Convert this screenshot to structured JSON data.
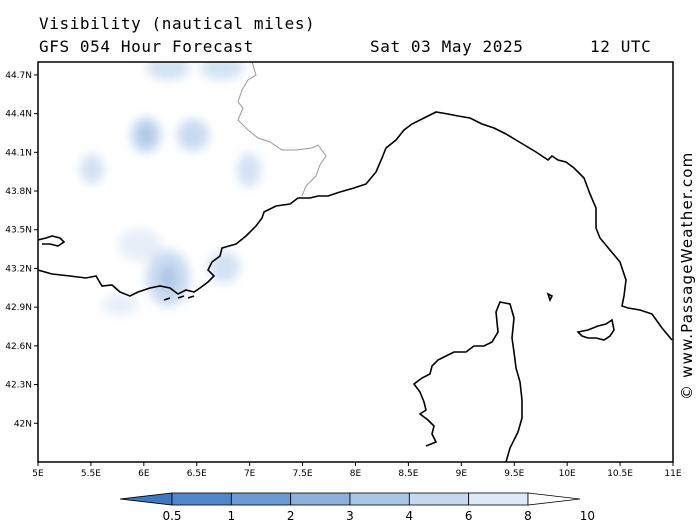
{
  "header": {
    "title": "Visibility (nautical miles)",
    "subtitle": "GFS 054 Hour Forecast",
    "date": "Sat 03 May 2025",
    "time": "12 UTC"
  },
  "credit": "© www.PassageWeather.com",
  "map_data": {
    "lon_range": [
      5,
      11
    ],
    "lat_range": [
      41.7,
      44.8
    ],
    "lon_ticks": [
      "5E",
      "5.5E",
      "6E",
      "6.5E",
      "7E",
      "7.5E",
      "8E",
      "8.5E",
      "9E",
      "9.5E",
      "10E",
      "10.5E",
      "11E"
    ],
    "lat_ticks": [
      "44.7N",
      "44.4N",
      "44.1N",
      "43.8N",
      "43.5N",
      "43.2N",
      "42.9N",
      "42.6N",
      "42.3N",
      "42N"
    ],
    "colorbar_labels": [
      "0.5",
      "1",
      "2",
      "3",
      "4",
      "6",
      "8",
      "10"
    ],
    "colorbar_colors": [
      "#3e78c0",
      "#4f87cc",
      "#6b9ad4",
      "#8bb0dc",
      "#aac6e6",
      "#c6d9ef",
      "#dde9f6",
      "#eef4fb"
    ],
    "colors": {
      "land_line": "#000000",
      "border_line": "#9a9a9a",
      "shade": "#dde9f6"
    }
  }
}
